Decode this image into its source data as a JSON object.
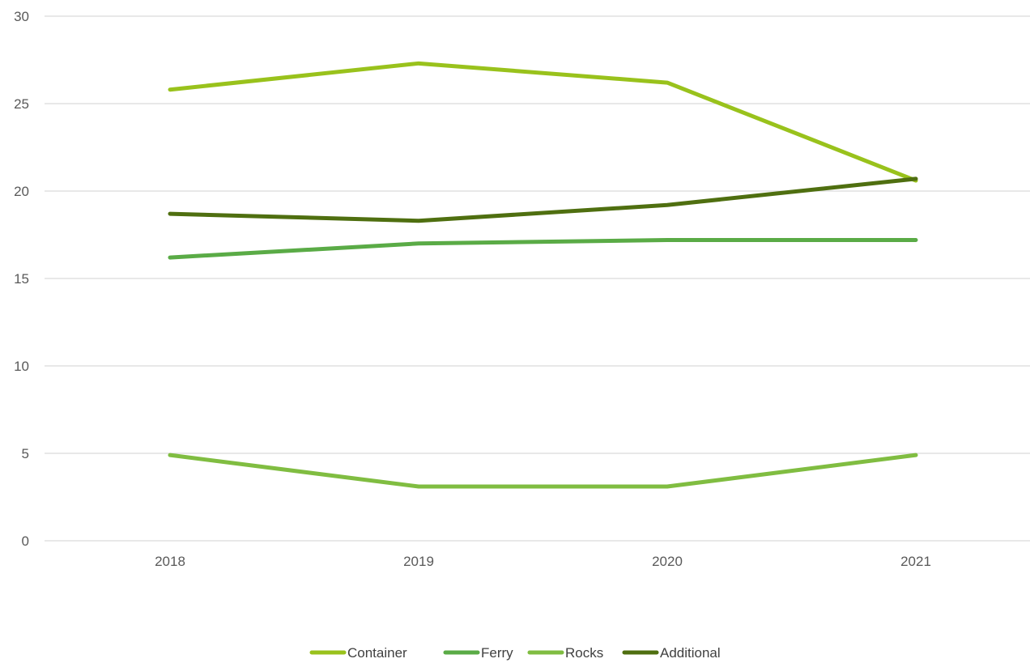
{
  "chart_data": {
    "type": "line",
    "categories": [
      "2018",
      "2019",
      "2020",
      "2021"
    ],
    "series": [
      {
        "name": "Container",
        "values": [
          25.8,
          27.3,
          26.2,
          20.6
        ],
        "color": "#99c21c"
      },
      {
        "name": "Ferry",
        "values": [
          16.2,
          17.0,
          17.2,
          17.2
        ],
        "color": "#5aab46"
      },
      {
        "name": "Rocks",
        "values": [
          4.9,
          3.1,
          3.1,
          4.9
        ],
        "color": "#80bd41"
      },
      {
        "name": "Additional",
        "values": [
          18.7,
          18.3,
          19.2,
          20.7
        ],
        "color": "#4f6f10"
      }
    ],
    "ylim": [
      0,
      30
    ],
    "y_ticks": [
      "0",
      "5",
      "10",
      "15",
      "20",
      "25",
      "30"
    ],
    "grid": true,
    "legend": "bottom"
  }
}
